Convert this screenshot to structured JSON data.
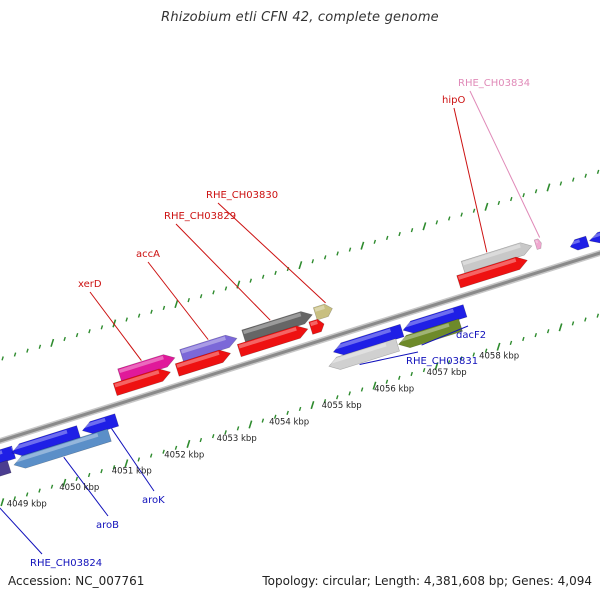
{
  "title": "Rhizobium etli CFN 42, complete genome",
  "accession": "Accession: NC_007761",
  "summary": "Topology: circular; Length: 4,381,608 bp; Genes: 4,094",
  "colors": {
    "backbone": "#8a8a8a",
    "tick": "#2e8b2e",
    "label_red": "#cc1111",
    "label_blue": "#1111bb",
    "label_pink": "#e08ab8"
  },
  "kbp_ticks": [
    "4049 kbp",
    "4050 kbp",
    "4051 kbp",
    "4052 kbp",
    "4053 kbp",
    "4054 kbp",
    "4055 kbp",
    "4056 kbp",
    "4057 kbp",
    "4058 kbp"
  ],
  "genes": [
    {
      "name": "xerD",
      "strand": "+",
      "color": "#e0199a"
    },
    {
      "name": "accA",
      "strand": "+",
      "color": "#7b68d8"
    },
    {
      "name": "RHE_CH03829",
      "strand": "+",
      "color": "#666666"
    },
    {
      "name": "RHE_CH03830",
      "strand": "+",
      "color": "#c8bf80"
    },
    {
      "name": "hipO",
      "strand": "+",
      "color": "#c8c8c8"
    },
    {
      "name": "RHE_CH03834",
      "strand": "+",
      "color": "#f0a8d0"
    },
    {
      "name": "RHE_CH03824",
      "strand": "-",
      "color": "#4b3d90"
    },
    {
      "name": "aroB",
      "strand": "-",
      "color": "#5b8fc8"
    },
    {
      "name": "aroK",
      "strand": "-",
      "color": "#1f1fe6"
    },
    {
      "name": "RHE_CH03831",
      "strand": "-",
      "color": "#d0d0d0"
    },
    {
      "name": "dacF2",
      "strand": "-",
      "color": "#6e8a2a"
    }
  ],
  "cds_color": "#ee1111",
  "neg_cds_color": "#1f1fe6"
}
